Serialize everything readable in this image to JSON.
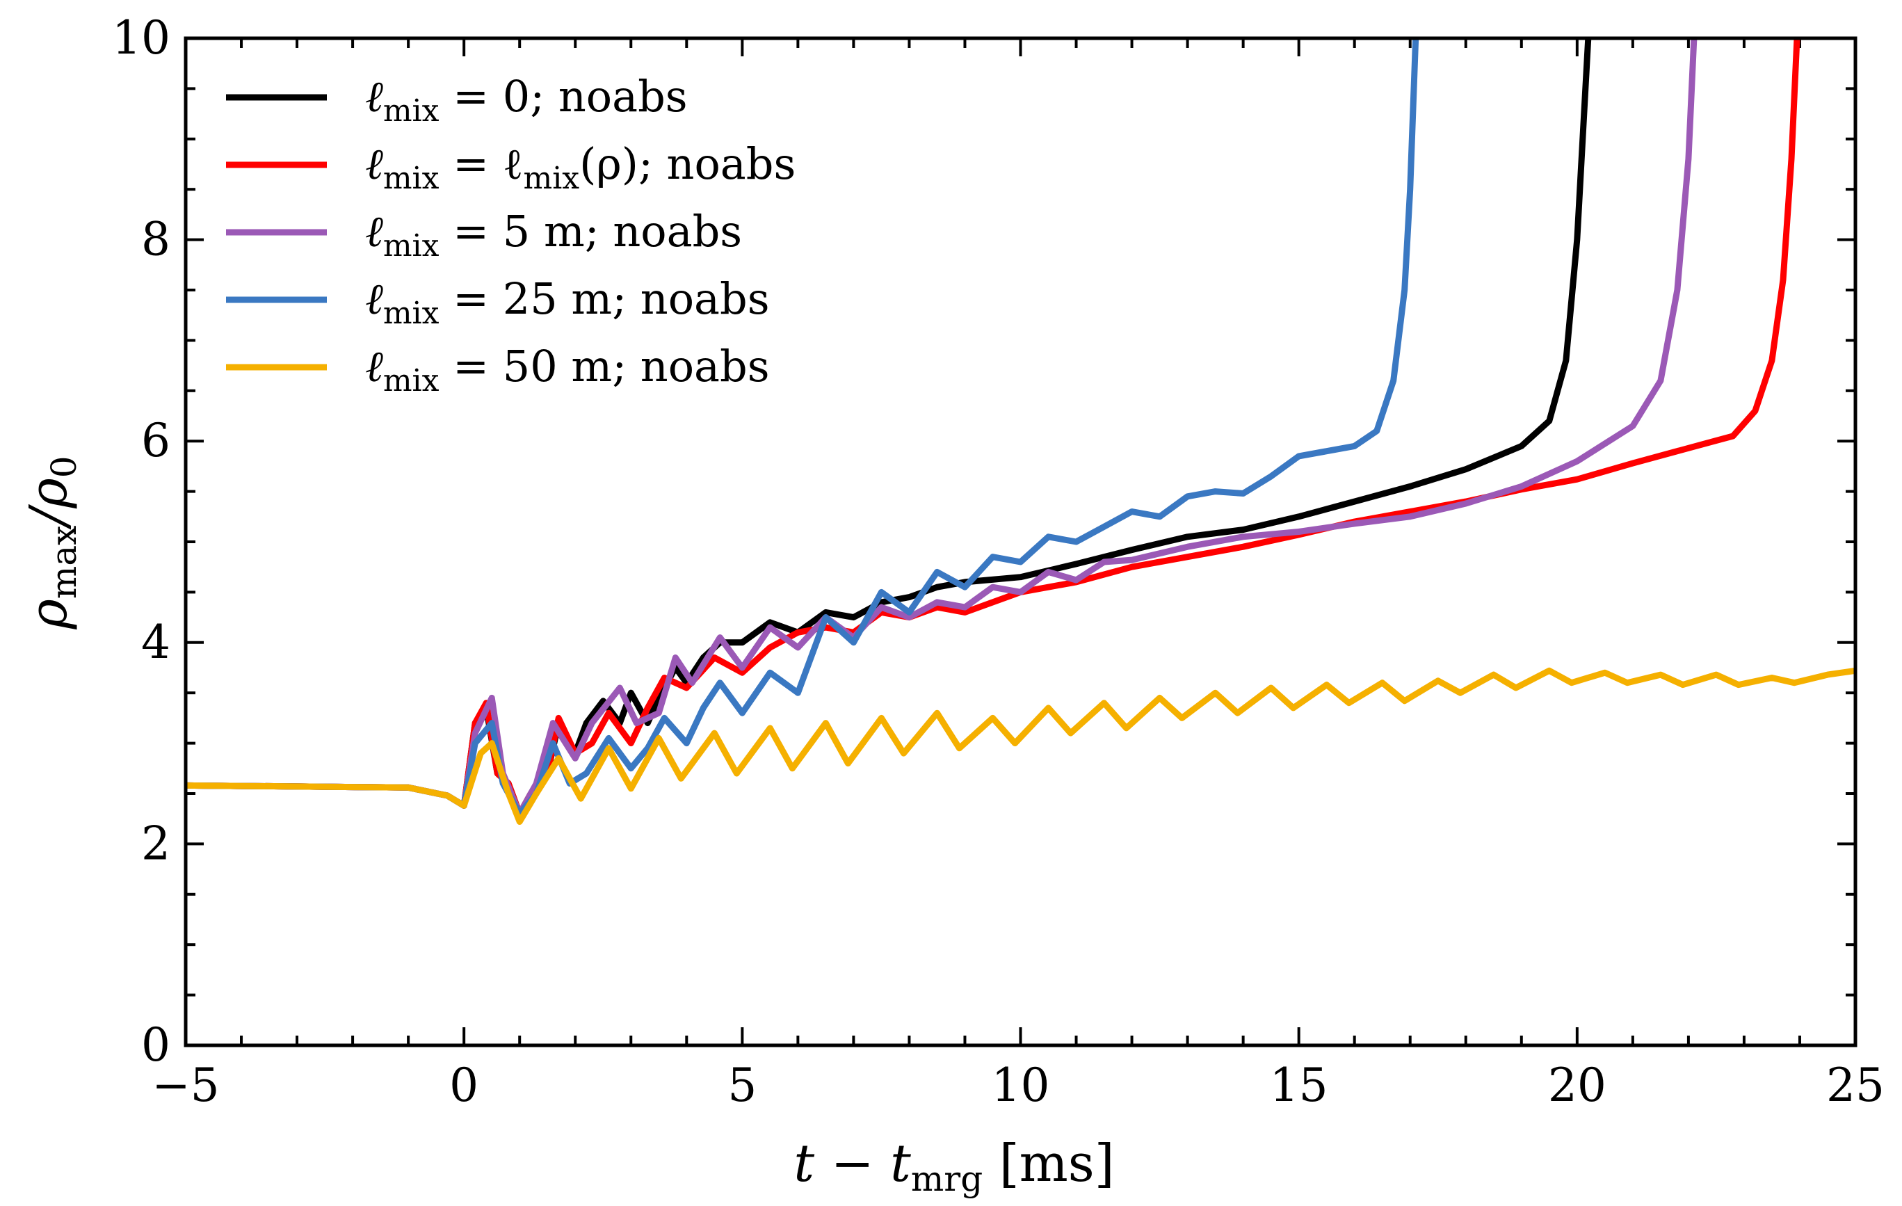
{
  "chart_data": {
    "type": "line",
    "title": "",
    "xlabel": "t − t_mrg [ms]",
    "ylabel": "ρ_max/ρ_0",
    "xlim": [
      -5,
      25
    ],
    "ylim": [
      0,
      10
    ],
    "xticks": [
      -5,
      0,
      5,
      10,
      15,
      20,
      25
    ],
    "yticks": [
      0,
      2,
      4,
      6,
      8,
      10
    ],
    "xtick_labels": [
      "−5",
      "0",
      "5",
      "10",
      "15",
      "20",
      "25"
    ],
    "ytick_labels": [
      "0",
      "2",
      "4",
      "6",
      "8",
      "10"
    ],
    "grid": false,
    "legend_position": "top-left",
    "series": [
      {
        "name": "ℓmix = 0; noabs",
        "color": "#000000",
        "points": [
          [
            -5,
            2.58
          ],
          [
            -1,
            2.56
          ],
          [
            -0.3,
            2.48
          ],
          [
            0,
            2.38
          ],
          [
            0.2,
            3.2
          ],
          [
            0.4,
            3.35
          ],
          [
            0.6,
            2.7
          ],
          [
            0.8,
            2.6
          ],
          [
            1.0,
            2.3
          ],
          [
            1.2,
            2.5
          ],
          [
            1.5,
            2.7
          ],
          [
            1.7,
            3.2
          ],
          [
            2.0,
            2.9
          ],
          [
            2.2,
            3.2
          ],
          [
            2.5,
            3.42
          ],
          [
            2.8,
            3.2
          ],
          [
            3.0,
            3.5
          ],
          [
            3.3,
            3.2
          ],
          [
            3.5,
            3.45
          ],
          [
            3.8,
            3.75
          ],
          [
            4.0,
            3.6
          ],
          [
            4.3,
            3.85
          ],
          [
            4.6,
            4.0
          ],
          [
            5.0,
            4.0
          ],
          [
            5.5,
            4.2
          ],
          [
            6.0,
            4.1
          ],
          [
            6.5,
            4.3
          ],
          [
            7.0,
            4.25
          ],
          [
            7.5,
            4.4
          ],
          [
            8.0,
            4.45
          ],
          [
            8.5,
            4.55
          ],
          [
            9.0,
            4.6
          ],
          [
            10,
            4.65
          ],
          [
            11,
            4.78
          ],
          [
            12,
            4.92
          ],
          [
            13,
            5.05
          ],
          [
            14,
            5.12
          ],
          [
            15,
            5.25
          ],
          [
            16,
            5.4
          ],
          [
            17,
            5.55
          ],
          [
            18,
            5.72
          ],
          [
            19,
            5.95
          ],
          [
            19.5,
            6.2
          ],
          [
            19.8,
            6.8
          ],
          [
            20.0,
            8.0
          ],
          [
            20.1,
            9.0
          ],
          [
            20.2,
            10.0
          ]
        ]
      },
      {
        "name": "ℓmix = ℓmix(ρ); noabs",
        "color": "#ff0000",
        "points": [
          [
            -5,
            2.58
          ],
          [
            -1,
            2.56
          ],
          [
            -0.3,
            2.48
          ],
          [
            0,
            2.38
          ],
          [
            0.2,
            3.2
          ],
          [
            0.4,
            3.4
          ],
          [
            0.6,
            2.7
          ],
          [
            0.8,
            2.6
          ],
          [
            1.0,
            2.3
          ],
          [
            1.2,
            2.5
          ],
          [
            1.5,
            2.7
          ],
          [
            1.7,
            3.25
          ],
          [
            2.0,
            2.9
          ],
          [
            2.3,
            3.0
          ],
          [
            2.6,
            3.3
          ],
          [
            3.0,
            3.0
          ],
          [
            3.3,
            3.35
          ],
          [
            3.6,
            3.65
          ],
          [
            4.0,
            3.55
          ],
          [
            4.5,
            3.85
          ],
          [
            5.0,
            3.7
          ],
          [
            5.5,
            3.95
          ],
          [
            6.0,
            4.1
          ],
          [
            6.5,
            4.15
          ],
          [
            7.0,
            4.1
          ],
          [
            7.5,
            4.3
          ],
          [
            8.0,
            4.25
          ],
          [
            8.5,
            4.35
          ],
          [
            9.0,
            4.3
          ],
          [
            10,
            4.5
          ],
          [
            11,
            4.6
          ],
          [
            12,
            4.75
          ],
          [
            13,
            4.85
          ],
          [
            14,
            4.95
          ],
          [
            15,
            5.07
          ],
          [
            16,
            5.2
          ],
          [
            17,
            5.3
          ],
          [
            18,
            5.4
          ],
          [
            19,
            5.52
          ],
          [
            20,
            5.62
          ],
          [
            21,
            5.78
          ],
          [
            22,
            5.93
          ],
          [
            22.8,
            6.05
          ],
          [
            23.2,
            6.3
          ],
          [
            23.5,
            6.8
          ],
          [
            23.7,
            7.6
          ],
          [
            23.85,
            8.8
          ],
          [
            23.95,
            10.0
          ]
        ]
      },
      {
        "name": "ℓmix = 5 m; noabs",
        "color": "#9b59b6",
        "points": [
          [
            -5,
            2.58
          ],
          [
            -1,
            2.56
          ],
          [
            -0.3,
            2.48
          ],
          [
            0,
            2.38
          ],
          [
            0.2,
            3.1
          ],
          [
            0.5,
            3.45
          ],
          [
            0.7,
            2.7
          ],
          [
            1.0,
            2.3
          ],
          [
            1.3,
            2.6
          ],
          [
            1.6,
            3.2
          ],
          [
            2.0,
            2.85
          ],
          [
            2.3,
            3.2
          ],
          [
            2.8,
            3.55
          ],
          [
            3.1,
            3.2
          ],
          [
            3.5,
            3.3
          ],
          [
            3.8,
            3.85
          ],
          [
            4.1,
            3.6
          ],
          [
            4.6,
            4.05
          ],
          [
            5.0,
            3.75
          ],
          [
            5.5,
            4.15
          ],
          [
            6.0,
            3.95
          ],
          [
            6.5,
            4.25
          ],
          [
            7.0,
            4.05
          ],
          [
            7.5,
            4.35
          ],
          [
            8.0,
            4.25
          ],
          [
            8.5,
            4.4
          ],
          [
            9.0,
            4.35
          ],
          [
            9.5,
            4.55
          ],
          [
            10.0,
            4.5
          ],
          [
            10.5,
            4.7
          ],
          [
            11.0,
            4.62
          ],
          [
            11.5,
            4.8
          ],
          [
            12,
            4.82
          ],
          [
            13,
            4.95
          ],
          [
            14,
            5.05
          ],
          [
            15,
            5.1
          ],
          [
            16,
            5.18
          ],
          [
            17,
            5.25
          ],
          [
            18,
            5.38
          ],
          [
            19,
            5.55
          ],
          [
            20,
            5.8
          ],
          [
            21,
            6.15
          ],
          [
            21.5,
            6.6
          ],
          [
            21.8,
            7.5
          ],
          [
            22.0,
            8.8
          ],
          [
            22.1,
            10.0
          ]
        ]
      },
      {
        "name": "ℓmix = 25 m; noabs",
        "color": "#3a78c2",
        "points": [
          [
            -5,
            2.58
          ],
          [
            -1,
            2.56
          ],
          [
            -0.3,
            2.48
          ],
          [
            0,
            2.38
          ],
          [
            0.2,
            3.0
          ],
          [
            0.5,
            3.2
          ],
          [
            0.7,
            2.6
          ],
          [
            1.0,
            2.3
          ],
          [
            1.3,
            2.5
          ],
          [
            1.6,
            3.0
          ],
          [
            1.9,
            2.6
          ],
          [
            2.2,
            2.7
          ],
          [
            2.6,
            3.05
          ],
          [
            3.0,
            2.75
          ],
          [
            3.3,
            2.95
          ],
          [
            3.6,
            3.25
          ],
          [
            4.0,
            3.0
          ],
          [
            4.3,
            3.35
          ],
          [
            4.6,
            3.6
          ],
          [
            5.0,
            3.3
          ],
          [
            5.5,
            3.7
          ],
          [
            6.0,
            3.5
          ],
          [
            6.5,
            4.25
          ],
          [
            7.0,
            4.0
          ],
          [
            7.5,
            4.5
          ],
          [
            8.0,
            4.3
          ],
          [
            8.5,
            4.7
          ],
          [
            9.0,
            4.55
          ],
          [
            9.5,
            4.85
          ],
          [
            10.0,
            4.8
          ],
          [
            10.5,
            5.05
          ],
          [
            11.0,
            5.0
          ],
          [
            11.5,
            5.15
          ],
          [
            12,
            5.3
          ],
          [
            12.5,
            5.25
          ],
          [
            13,
            5.45
          ],
          [
            13.5,
            5.5
          ],
          [
            14,
            5.48
          ],
          [
            14.5,
            5.65
          ],
          [
            15,
            5.85
          ],
          [
            15.5,
            5.9
          ],
          [
            16,
            5.95
          ],
          [
            16.4,
            6.1
          ],
          [
            16.7,
            6.6
          ],
          [
            16.9,
            7.5
          ],
          [
            17.0,
            8.5
          ],
          [
            17.1,
            10.0
          ]
        ]
      },
      {
        "name": "ℓmix = 50 m; noabs",
        "color": "#f5b000",
        "points": [
          [
            -5,
            2.58
          ],
          [
            -1,
            2.56
          ],
          [
            -0.3,
            2.48
          ],
          [
            0,
            2.38
          ],
          [
            0.3,
            2.9
          ],
          [
            0.5,
            3.0
          ],
          [
            0.8,
            2.5
          ],
          [
            1.0,
            2.22
          ],
          [
            1.3,
            2.5
          ],
          [
            1.7,
            2.85
          ],
          [
            2.1,
            2.45
          ],
          [
            2.6,
            2.95
          ],
          [
            3.0,
            2.55
          ],
          [
            3.5,
            3.05
          ],
          [
            3.9,
            2.65
          ],
          [
            4.5,
            3.1
          ],
          [
            4.9,
            2.7
          ],
          [
            5.5,
            3.15
          ],
          [
            5.9,
            2.75
          ],
          [
            6.5,
            3.2
          ],
          [
            6.9,
            2.8
          ],
          [
            7.5,
            3.25
          ],
          [
            7.9,
            2.9
          ],
          [
            8.5,
            3.3
          ],
          [
            8.9,
            2.95
          ],
          [
            9.5,
            3.25
          ],
          [
            9.9,
            3.0
          ],
          [
            10.5,
            3.35
          ],
          [
            10.9,
            3.1
          ],
          [
            11.5,
            3.4
          ],
          [
            11.9,
            3.15
          ],
          [
            12.5,
            3.45
          ],
          [
            12.9,
            3.25
          ],
          [
            13.5,
            3.5
          ],
          [
            13.9,
            3.3
          ],
          [
            14.5,
            3.55
          ],
          [
            14.9,
            3.35
          ],
          [
            15.5,
            3.58
          ],
          [
            15.9,
            3.4
          ],
          [
            16.5,
            3.6
          ],
          [
            16.9,
            3.42
          ],
          [
            17.5,
            3.62
          ],
          [
            17.9,
            3.5
          ],
          [
            18.5,
            3.68
          ],
          [
            18.9,
            3.55
          ],
          [
            19.5,
            3.72
          ],
          [
            19.9,
            3.6
          ],
          [
            20.5,
            3.7
          ],
          [
            20.9,
            3.6
          ],
          [
            21.5,
            3.68
          ],
          [
            21.9,
            3.58
          ],
          [
            22.5,
            3.68
          ],
          [
            22.9,
            3.58
          ],
          [
            23.5,
            3.65
          ],
          [
            23.9,
            3.6
          ],
          [
            24.5,
            3.68
          ],
          [
            25.0,
            3.72
          ]
        ]
      }
    ]
  },
  "legend": [
    {
      "lhs_main": "ℓ",
      "lhs_sub": "mix",
      "rhs": " = 0;  noabs",
      "color": "#000000"
    },
    {
      "lhs_main": "ℓ",
      "lhs_sub": "mix",
      "rhs": " = ℓ",
      "rhs_sub": "mix",
      "rhs_tail": "(ρ);  noabs",
      "color": "#ff0000"
    },
    {
      "lhs_main": "ℓ",
      "lhs_sub": "mix",
      "rhs": " = 5 m;  noabs",
      "color": "#9b59b6"
    },
    {
      "lhs_main": "ℓ",
      "lhs_sub": "mix",
      "rhs": " = 25 m;  noabs",
      "color": "#3a78c2"
    },
    {
      "lhs_main": "ℓ",
      "lhs_sub": "mix",
      "rhs": " = 50 m;  noabs",
      "color": "#f5b000"
    }
  ],
  "axis_text": {
    "x_main": "t − t",
    "x_sub": "mrg",
    "x_unit": " [ms]",
    "y_main": "ρ",
    "y_sub": "max",
    "y_mid": "/ρ",
    "y_sub2": "0"
  }
}
